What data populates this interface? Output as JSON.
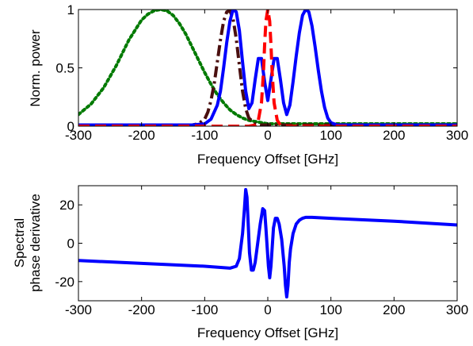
{
  "chart_data": [
    {
      "type": "line",
      "xlabel": "Frequency Offset [GHz]",
      "ylabel": "Norm. power",
      "xlim": [
        -300,
        300
      ],
      "ylim": [
        0,
        1
      ],
      "xticks": [
        -300,
        -200,
        -100,
        0,
        100,
        200,
        300
      ],
      "yticks": [
        0,
        0.5,
        1
      ],
      "xtick_labels": [
        "-300",
        "-200",
        "-100",
        "0",
        "100",
        "200",
        "300"
      ],
      "ytick_labels": [
        "0",
        "0.5",
        "1"
      ],
      "grid": false,
      "series": [
        {
          "color": "#007a00",
          "style": "dotted",
          "x": [
            -300,
            -280,
            -260,
            -240,
            -220,
            -200,
            -190,
            -180,
            -170,
            -160,
            -150,
            -140,
            -130,
            -120,
            -110,
            -100,
            -90,
            -80,
            -70,
            -60,
            -50,
            -40,
            -30,
            -20,
            -10,
            0,
            20,
            50,
            100,
            150,
            200,
            250,
            300
          ],
          "y": [
            0.1,
            0.19,
            0.33,
            0.52,
            0.74,
            0.91,
            0.96,
            0.99,
            1.0,
            0.99,
            0.95,
            0.88,
            0.79,
            0.68,
            0.57,
            0.46,
            0.36,
            0.27,
            0.2,
            0.14,
            0.1,
            0.07,
            0.05,
            0.04,
            0.03,
            0.02,
            0.02,
            0.02,
            0.02,
            0.02,
            0.02,
            0.02,
            0.02
          ]
        },
        {
          "color": "#4a0f0f",
          "style": "dashdot",
          "x": [
            -300,
            -150,
            -120,
            -110,
            -100,
            -95,
            -90,
            -85,
            -80,
            -75,
            -70,
            -65,
            -60,
            -55,
            -50,
            -45,
            -40,
            -35,
            -30,
            -20,
            -10,
            0,
            50,
            100,
            150,
            200,
            250,
            300
          ],
          "y": [
            0.01,
            0.01,
            0.01,
            0.02,
            0.06,
            0.12,
            0.22,
            0.36,
            0.55,
            0.74,
            0.9,
            0.98,
            0.99,
            0.92,
            0.75,
            0.52,
            0.3,
            0.15,
            0.07,
            0.02,
            0.01,
            0.01,
            0.01,
            0.01,
            0.01,
            0.01,
            0.01,
            0.01
          ]
        },
        {
          "color": "#0000ff",
          "style": "solid",
          "x": [
            -300,
            -120,
            -100,
            -90,
            -80,
            -75,
            -70,
            -65,
            -60,
            -55,
            -50,
            -45,
            -40,
            -35,
            -30,
            -25,
            -20,
            -15,
            -10,
            -5,
            0,
            5,
            10,
            15,
            20,
            25,
            30,
            35,
            40,
            45,
            50,
            55,
            60,
            65,
            70,
            75,
            80,
            85,
            90,
            95,
            100,
            110,
            120,
            150,
            200,
            300
          ],
          "y": [
            0.01,
            0.01,
            0.02,
            0.06,
            0.18,
            0.3,
            0.5,
            0.72,
            0.9,
            1.0,
            0.98,
            0.82,
            0.55,
            0.3,
            0.15,
            0.2,
            0.4,
            0.58,
            0.58,
            0.38,
            0.22,
            0.4,
            0.58,
            0.58,
            0.4,
            0.2,
            0.1,
            0.18,
            0.38,
            0.6,
            0.8,
            0.95,
            1.0,
            0.98,
            0.86,
            0.68,
            0.48,
            0.3,
            0.16,
            0.07,
            0.03,
            0.01,
            0.01,
            0.01,
            0.01,
            0.01
          ]
        },
        {
          "color": "#ff0000",
          "style": "dashed",
          "x": [
            -300,
            -30,
            -20,
            -15,
            -10,
            -7,
            -5,
            -3,
            0,
            3,
            5,
            7,
            10,
            15,
            20,
            30,
            300
          ],
          "y": [
            0.0,
            0.0,
            0.01,
            0.05,
            0.2,
            0.45,
            0.7,
            0.9,
            1.0,
            0.9,
            0.7,
            0.45,
            0.2,
            0.05,
            0.01,
            0.0,
            0.0
          ]
        }
      ]
    },
    {
      "type": "line",
      "xlabel": "Frequency Offset [GHz]",
      "ylabel": "Spectral\nphase derivative",
      "xlim": [
        -300,
        300
      ],
      "ylim": [
        -30,
        30
      ],
      "xticks": [
        -300,
        -200,
        -100,
        0,
        100,
        200,
        300
      ],
      "yticks": [
        -20,
        0,
        20
      ],
      "xtick_labels": [
        "-300",
        "-200",
        "-100",
        "0",
        "100",
        "200",
        "300"
      ],
      "ytick_labels": [
        "-20",
        "0",
        "20"
      ],
      "grid": false,
      "series": [
        {
          "color": "#0000ff",
          "style": "solid",
          "x": [
            -300,
            -200,
            -100,
            -60,
            -50,
            -45,
            -40,
            -37,
            -35,
            -33,
            -31,
            -29,
            -26,
            -23,
            -20,
            -16,
            -12,
            -8,
            -5,
            -3,
            -1,
            1,
            3,
            5,
            7,
            9,
            12,
            15,
            18,
            22,
            26,
            28,
            30,
            32,
            34,
            36,
            40,
            45,
            50,
            55,
            60,
            70,
            100,
            200,
            300
          ],
          "y": [
            -9,
            -10.5,
            -12,
            -13,
            -12,
            -8,
            5,
            18,
            28,
            24,
            10,
            -5,
            -14,
            -14,
            -10,
            0,
            10,
            18,
            17,
            8,
            -2,
            -12,
            -18,
            -12,
            -2,
            8,
            13,
            13,
            10,
            2,
            -12,
            -22,
            -28,
            -22,
            -10,
            -3,
            5,
            10,
            12,
            13,
            13.5,
            13.5,
            13,
            11.5,
            9.5
          ]
        }
      ]
    }
  ]
}
